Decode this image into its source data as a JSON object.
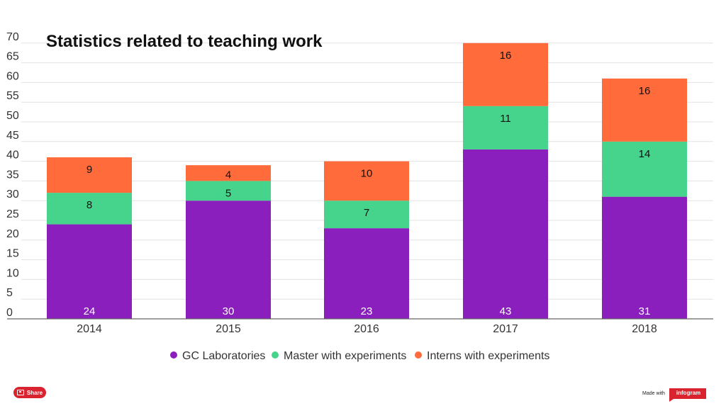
{
  "chart_data": {
    "type": "bar",
    "stacked": true,
    "title": "Statistics related to teaching work",
    "categories": [
      "2014",
      "2015",
      "2016",
      "2017",
      "2018"
    ],
    "series": [
      {
        "name": "GC Laboratories",
        "values": [
          24,
          30,
          23,
          43,
          31
        ],
        "color": "#8b1fbe",
        "label_color": "#ffffff"
      },
      {
        "name": "Master with experiments",
        "values": [
          8,
          5,
          7,
          11,
          14
        ],
        "color": "#46d48c",
        "label_color": "#111111"
      },
      {
        "name": "Interns with experiments",
        "values": [
          9,
          4,
          10,
          16,
          16
        ],
        "color": "#ff6b3a",
        "label_color": "#111111"
      }
    ],
    "yticks": [
      0,
      5,
      10,
      15,
      20,
      25,
      30,
      35,
      40,
      45,
      50,
      55,
      60,
      65,
      70
    ],
    "ylim": [
      0,
      72
    ],
    "xlabel": "",
    "ylabel": "",
    "grid": true,
    "legend_position": "bottom"
  },
  "footer": {
    "share_label": "Share",
    "made_with_label": "Made with",
    "brand_label": "infogram"
  }
}
